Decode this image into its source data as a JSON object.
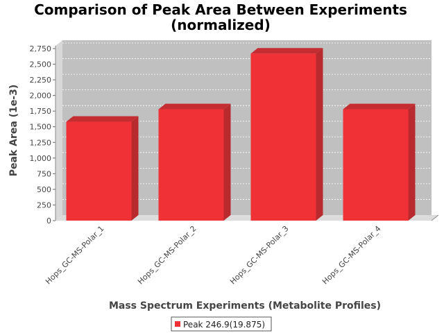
{
  "chart_data": {
    "type": "bar",
    "title": "Comparison of Peak Area Between Experiments",
    "subtitle": "(normalized)",
    "xlabel": "Mass Spectrum Experiments (Metabolite Profiles)",
    "ylabel": "Peak Area (1e-3)",
    "categories": [
      "Hops_GC-MS-Polar_1",
      "Hops_GC-MS-Polar_2",
      "Hops_GC-MS-Polar_3",
      "Hops_GC-MS-Polar_4"
    ],
    "series": [
      {
        "name": "Peak 246.9(19.875)",
        "values": [
          1580,
          1780,
          2670,
          1780
        ]
      }
    ],
    "ylim": [
      0,
      2750
    ],
    "yticks": [
      0,
      250,
      500,
      750,
      1000,
      1250,
      1500,
      1750,
      2000,
      2250,
      2500,
      2750
    ],
    "ytick_labels": [
      "0",
      "250",
      "500",
      "750",
      "1,000",
      "1,250",
      "1,500",
      "1,750",
      "2,000",
      "2,250",
      "2,500",
      "2,750"
    ],
    "grid": true,
    "legend": "bottom",
    "colors": {
      "bar_front": "#f03236",
      "bar_side": "#b82a2e",
      "bar_top": "#c42e32",
      "plot_bg": "#c0c0c0",
      "floor": "#dcdcdc",
      "grid": "#ffffff"
    }
  }
}
